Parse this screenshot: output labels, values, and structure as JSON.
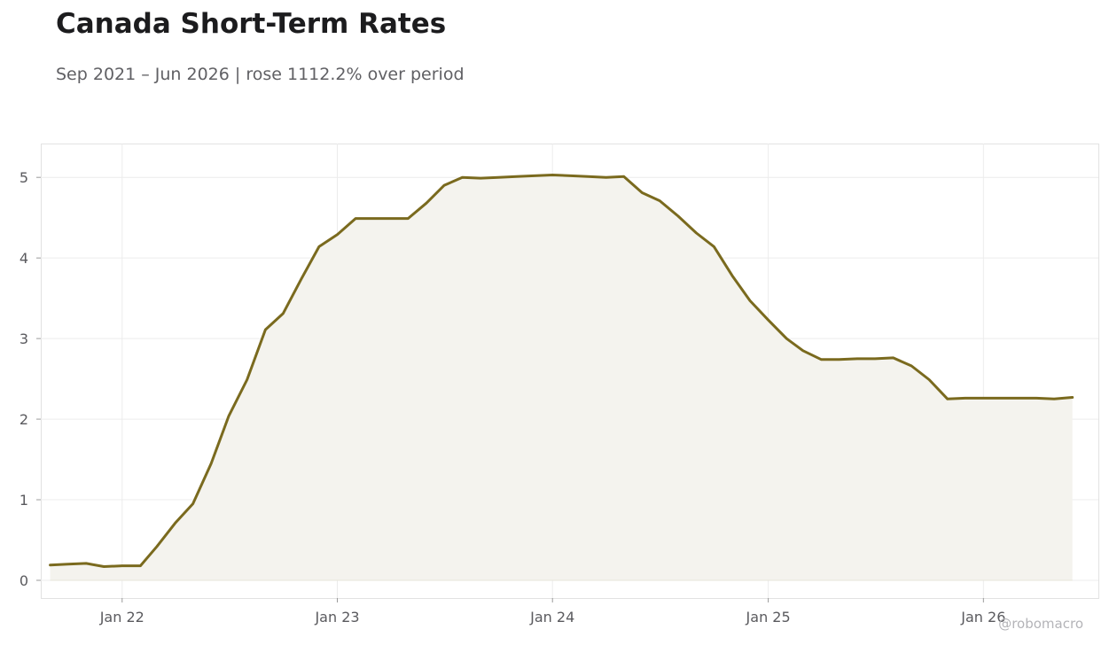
{
  "title": "Canada Short-Term Rates",
  "subtitle": "Sep 2021 – Jun 2026 | rose 1112.2% over period",
  "watermark": "@robomacro",
  "chart_data": {
    "type": "area",
    "title": "Canada Short-Term Rates",
    "subtitle": "Sep 2021 – Jun 2026 | rose 1112.2% over period",
    "xlabel": "",
    "ylabel": "",
    "xlim": [
      "2021-08-16",
      "2026-07-15"
    ],
    "ylim": [
      -0.22,
      5.42
    ],
    "grid": true,
    "legend": "none",
    "line_color": "#7a6a1e",
    "fill_color": "#f4f3ee",
    "x_ticks": [
      {
        "date": "2022-01-01",
        "label": "Jan 22"
      },
      {
        "date": "2023-01-01",
        "label": "Jan 23"
      },
      {
        "date": "2024-01-01",
        "label": "Jan 24"
      },
      {
        "date": "2025-01-01",
        "label": "Jan 25"
      },
      {
        "date": "2026-01-01",
        "label": "Jan 26"
      }
    ],
    "y_ticks": [
      {
        "value": 0,
        "label": "0"
      },
      {
        "value": 1,
        "label": "1"
      },
      {
        "value": 2,
        "label": "2"
      },
      {
        "value": 3,
        "label": "3"
      },
      {
        "value": 4,
        "label": "4"
      },
      {
        "value": 5,
        "label": "5"
      }
    ],
    "series": [
      {
        "x": [
          "2021-09-01",
          "2021-10-01",
          "2021-11-01",
          "2021-12-01",
          "2022-01-01",
          "2022-02-01",
          "2022-03-01",
          "2022-04-01",
          "2022-05-01",
          "2022-06-01",
          "2022-07-01",
          "2022-08-01",
          "2022-09-01",
          "2022-10-01",
          "2022-11-01",
          "2022-12-01",
          "2023-01-01",
          "2023-02-01",
          "2023-03-01",
          "2023-04-01",
          "2023-05-01",
          "2023-06-01",
          "2023-07-01",
          "2023-08-01",
          "2023-09-01",
          "2023-10-01",
          "2023-11-01",
          "2023-12-01",
          "2024-01-01",
          "2024-02-01",
          "2024-03-01",
          "2024-04-01",
          "2024-05-01",
          "2024-06-01",
          "2024-07-01",
          "2024-08-01",
          "2024-09-01",
          "2024-10-01",
          "2024-11-01",
          "2024-12-01",
          "2025-01-01",
          "2025-02-01",
          "2025-03-01",
          "2025-04-01",
          "2025-05-01",
          "2025-06-01",
          "2025-07-01",
          "2025-08-01",
          "2025-09-01",
          "2025-10-01",
          "2025-11-01",
          "2025-12-01",
          "2026-01-01",
          "2026-02-01",
          "2026-03-01",
          "2026-04-01",
          "2026-05-01",
          "2026-06-01"
        ],
        "values": [
          0.19,
          0.2,
          0.21,
          0.17,
          0.18,
          0.18,
          0.42,
          0.71,
          0.95,
          1.45,
          2.04,
          2.49,
          3.11,
          3.31,
          3.74,
          4.14,
          4.29,
          4.49,
          4.49,
          4.49,
          4.49,
          4.68,
          4.9,
          5.0,
          4.99,
          5.0,
          5.01,
          5.02,
          5.03,
          5.02,
          5.01,
          5.0,
          5.01,
          4.81,
          4.71,
          4.52,
          4.31,
          4.14,
          3.78,
          3.47,
          3.23,
          3.0,
          2.85,
          2.74,
          2.74,
          2.75,
          2.75,
          2.76,
          2.66,
          2.49,
          2.25,
          2.26,
          2.26,
          2.26,
          2.26,
          2.26,
          2.25,
          2.27
        ]
      }
    ]
  }
}
